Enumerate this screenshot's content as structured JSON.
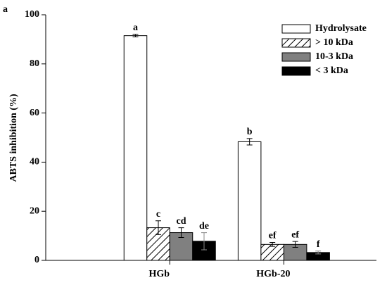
{
  "chart_data": {
    "type": "bar",
    "panel_label": "a",
    "ylabel": "ABTS inhibition (%)",
    "categories": [
      "HGb",
      "HGb-20"
    ],
    "series": [
      {
        "name": "Hydrolysate",
        "color": "#ffffff",
        "values": [
          91.5,
          48.3
        ],
        "errors": [
          0.5,
          1.3
        ],
        "letters": [
          "a",
          "b"
        ]
      },
      {
        "name": "> 10 kDa",
        "color": "#ffffff",
        "hatch": "diagonal",
        "values": [
          13.3,
          6.5
        ],
        "errors": [
          2.8,
          0.8
        ],
        "letters": [
          "c",
          "ef"
        ]
      },
      {
        "name": "10-3 kDa",
        "color": "#808080",
        "values": [
          11.3,
          6.5
        ],
        "errors": [
          2.0,
          1.2
        ],
        "letters": [
          "cd",
          "ef"
        ]
      },
      {
        "name": "< 3 kDa",
        "color": "#000000",
        "values": [
          7.8,
          3.2
        ],
        "errors": [
          3.5,
          0.6
        ],
        "letters": [
          "de",
          "f"
        ]
      }
    ],
    "ylim": [
      0,
      100
    ],
    "yticks": [
      0,
      20,
      40,
      60,
      80,
      100
    ],
    "legend": "upper right"
  }
}
